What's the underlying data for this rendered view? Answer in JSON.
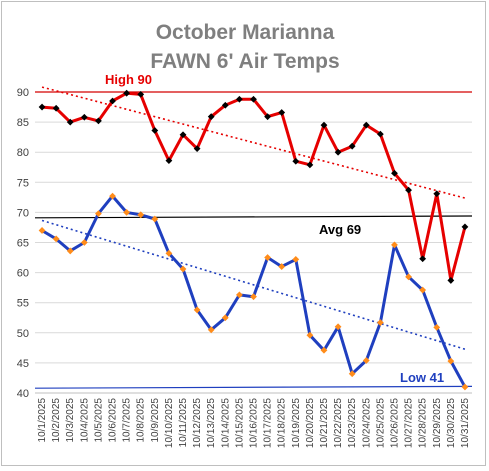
{
  "chart_data": {
    "type": "line",
    "title": [
      "October Marianna",
      "FAWN 6' Air Temps"
    ],
    "ylim": [
      40,
      90
    ],
    "yticks": [
      40,
      45,
      50,
      55,
      60,
      65,
      70,
      75,
      80,
      85,
      90
    ],
    "grid": true,
    "categories": [
      "10/1/2025",
      "10/2/2025",
      "10/3/2025",
      "10/4/2025",
      "10/5/2025",
      "10/6/2025",
      "10/7/2025",
      "10/8/2025",
      "10/9/2025",
      "10/10/2025",
      "10/11/2025",
      "10/12/2025",
      "10/13/2025",
      "10/14/2025",
      "10/15/2025",
      "10/16/2025",
      "10/17/2025",
      "10/18/2025",
      "10/19/2025",
      "10/20/2025",
      "10/21/2025",
      "10/22/2025",
      "10/23/2025",
      "10/24/2025",
      "10/25/2025",
      "10/26/2025",
      "10/27/2025",
      "10/28/2025",
      "10/29/2025",
      "10/30/2025",
      "10/31/2025"
    ],
    "series": [
      {
        "color": "#e60000",
        "marker_color": "#000000",
        "values": [
          87.5,
          87.3,
          85.0,
          85.8,
          85.2,
          88.5,
          89.8,
          89.6,
          83.6,
          78.6,
          82.9,
          80.6,
          85.9,
          87.8,
          88.8,
          88.8,
          85.9,
          86.6,
          78.5,
          77.9,
          84.5,
          80.0,
          81.0,
          84.5,
          83.0,
          76.5,
          73.7,
          62.3,
          73.1,
          58.7,
          67.6
        ]
      },
      {
        "color": "#1f3fbf",
        "marker_color": "#ff8c1a",
        "values": [
          67.0,
          65.6,
          63.6,
          65.0,
          69.8,
          72.7,
          70.0,
          69.6,
          68.9,
          63.2,
          60.6,
          53.8,
          50.5,
          52.5,
          56.3,
          56.0,
          62.5,
          61.0,
          62.2,
          49.6,
          47.1,
          51.0,
          43.2,
          45.4,
          51.7,
          64.6,
          59.3,
          57.1,
          50.9,
          45.3,
          41.0
        ]
      }
    ],
    "reference_lines": [
      {
        "label": "High 90",
        "value": 90,
        "color": "#d40000",
        "label_color": "#e60000"
      },
      {
        "label": "Avg 69",
        "value_start": 69.1,
        "value_end": 69.4,
        "color": "#000000",
        "label_color": "#000000"
      },
      {
        "label": "Low 41",
        "value_start": 40.8,
        "value_end": 41.1,
        "color": "#1f3fbf",
        "label_color": "#1f3fbf"
      }
    ],
    "trendlines": [
      {
        "series": 0,
        "color": "#e60000",
        "style": "dotted"
      },
      {
        "series": 1,
        "color": "#1f3fbf",
        "style": "dotted"
      }
    ]
  }
}
